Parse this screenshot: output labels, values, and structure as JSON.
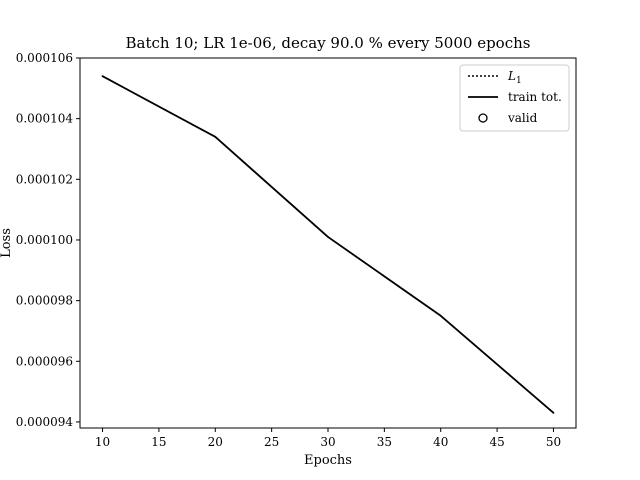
{
  "chart_data": {
    "type": "line",
    "title": "Batch 10; LR 1e-06, decay 90.0 % every 5000 epochs",
    "xlabel": "Epochs",
    "ylabel": "Loss",
    "xlim": [
      8,
      52
    ],
    "ylim": [
      9.38e-05,
      0.000106
    ],
    "xticks": [
      10,
      15,
      20,
      25,
      30,
      35,
      40,
      45,
      50
    ],
    "yticks": [
      9.4e-05,
      9.6e-05,
      9.8e-05,
      0.0001,
      0.000102,
      0.000104,
      0.000106
    ],
    "ytick_labels": [
      "0.000094",
      "0.000096",
      "0.000098",
      "0.000100",
      "0.000102",
      "0.000104",
      "0.000106"
    ],
    "grid": false,
    "legend_position": "top-right",
    "legend": [
      {
        "label": "L1",
        "style": "dotted"
      },
      {
        "label": "train tot.",
        "style": "solid"
      },
      {
        "label": "valid",
        "style": "circle-marker"
      }
    ],
    "series": [
      {
        "name": "train tot.",
        "color": "#000000",
        "x": [
          10,
          20,
          30,
          40,
          50
        ],
        "y": [
          0.0001054,
          0.0001034,
          0.0001001,
          9.75e-05,
          9.43e-05
        ]
      }
    ]
  }
}
